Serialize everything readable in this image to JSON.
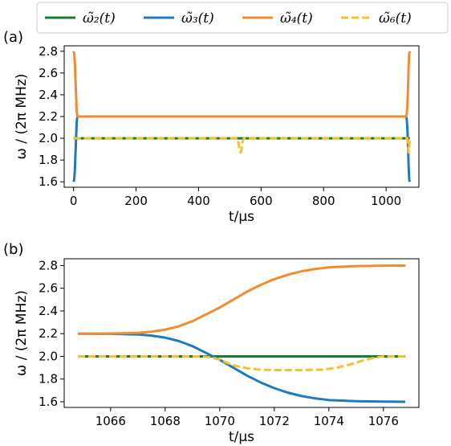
{
  "legend": [
    {
      "name": "ω̃₂(t)",
      "color": "#1a7a3a",
      "dash": "solid"
    },
    {
      "name": "ω̃₃(t)",
      "color": "#1f7bbf",
      "dash": "solid"
    },
    {
      "name": "ω̃₄(t)",
      "color": "#f28c2e",
      "dash": "solid"
    },
    {
      "name": "ω̃₆(t)",
      "color": "#f5c131",
      "dash": "dashed"
    }
  ],
  "chart_data": [
    {
      "type": "line",
      "panel_label": "(a)",
      "xlabel": "t/μs",
      "ylabel": "ω / (2π MHz)",
      "xlim": [
        -30,
        1105
      ],
      "ylim": [
        1.55,
        2.85
      ],
      "xticks": [
        0,
        200,
        400,
        600,
        800,
        1000
      ],
      "yticks": [
        1.6,
        1.8,
        2.0,
        2.2,
        2.4,
        2.6,
        2.8
      ],
      "series": [
        {
          "name": "ω̃₂(t)",
          "color": "#1a7a3a",
          "dash": "solid",
          "x": [
            0,
            1076
          ],
          "y": [
            2.0,
            2.0
          ]
        },
        {
          "name": "ω̃₃(t)",
          "color": "#1f7bbf",
          "dash": "solid",
          "x": [
            0,
            2,
            4,
            6,
            8,
            10,
            12,
            1064,
            1066,
            1068,
            1070,
            1072,
            1074,
            1076
          ],
          "y": [
            1.6,
            1.62,
            1.7,
            1.85,
            2.0,
            2.15,
            2.2,
            2.2,
            2.18,
            2.1,
            1.95,
            1.75,
            1.62,
            1.6
          ]
        },
        {
          "name": "ω̃₄(t)",
          "color": "#f28c2e",
          "dash": "solid",
          "x": [
            0,
            2,
            4,
            6,
            8,
            10,
            12,
            1064,
            1066,
            1068,
            1070,
            1072,
            1074,
            1076
          ],
          "y": [
            2.8,
            2.78,
            2.7,
            2.55,
            2.4,
            2.25,
            2.2,
            2.2,
            2.22,
            2.3,
            2.45,
            2.65,
            2.78,
            2.8
          ]
        },
        {
          "name": "ω̃₆(t)",
          "color": "#f5c131",
          "dash": "dashed",
          "x": [
            0,
            525,
            528,
            531,
            534,
            537,
            540,
            545,
            1064,
            1068,
            1070,
            1072,
            1074,
            1076
          ],
          "y": [
            2.0,
            2.0,
            1.95,
            1.89,
            1.87,
            1.89,
            1.96,
            2.0,
            2.0,
            2.0,
            1.92,
            1.87,
            1.93,
            2.0
          ]
        }
      ]
    },
    {
      "type": "line",
      "panel_label": "(b)",
      "xlabel": "t/μs",
      "ylabel": "ω / (2π MHz)",
      "xlim": [
        1064.3,
        1077.3
      ],
      "ylim": [
        1.55,
        2.86
      ],
      "xticks": [
        1066,
        1068,
        1070,
        1072,
        1074,
        1076
      ],
      "yticks": [
        1.6,
        1.8,
        2.0,
        2.2,
        2.4,
        2.6,
        2.8
      ],
      "series": [
        {
          "name": "ω̃₂(t)",
          "color": "#1a7a3a",
          "dash": "solid",
          "x": [
            1064.8,
            1076.8
          ],
          "y": [
            2.0,
            2.0
          ]
        },
        {
          "name": "ω̃₃(t)",
          "color": "#1f7bbf",
          "dash": "solid",
          "x": [
            1064.8,
            1066,
            1067,
            1067.5,
            1068,
            1068.5,
            1069,
            1069.5,
            1070,
            1070.5,
            1071,
            1071.5,
            1072,
            1072.5,
            1073,
            1073.5,
            1074,
            1075,
            1076,
            1076.8
          ],
          "y": [
            2.2,
            2.199,
            2.193,
            2.183,
            2.165,
            2.135,
            2.09,
            2.03,
            1.97,
            1.9,
            1.83,
            1.77,
            1.72,
            1.68,
            1.65,
            1.63,
            1.615,
            1.605,
            1.601,
            1.6
          ]
        },
        {
          "name": "ω̃₄(t)",
          "color": "#f28c2e",
          "dash": "solid",
          "x": [
            1064.8,
            1066,
            1067,
            1067.5,
            1068,
            1068.5,
            1069,
            1069.5,
            1070,
            1070.5,
            1071,
            1071.5,
            1072,
            1072.5,
            1073,
            1073.5,
            1074,
            1075,
            1076,
            1076.8
          ],
          "y": [
            2.2,
            2.201,
            2.207,
            2.217,
            2.235,
            2.265,
            2.31,
            2.37,
            2.43,
            2.5,
            2.57,
            2.63,
            2.68,
            2.72,
            2.75,
            2.77,
            2.785,
            2.795,
            2.799,
            2.8
          ]
        },
        {
          "name": "ω̃₆(t)",
          "color": "#f5c131",
          "dash": "dashed",
          "x": [
            1064.8,
            1069.3,
            1069.7,
            1070.0,
            1070.3,
            1070.6,
            1071.0,
            1071.5,
            1072,
            1073,
            1073.8,
            1074.3,
            1074.8,
            1075.2,
            1075.6,
            1076.0,
            1076.8
          ],
          "y": [
            2.0,
            2.0,
            1.99,
            1.97,
            1.94,
            1.915,
            1.895,
            1.882,
            1.879,
            1.879,
            1.883,
            1.9,
            1.93,
            1.96,
            1.985,
            2.0,
            2.0
          ]
        }
      ]
    }
  ]
}
